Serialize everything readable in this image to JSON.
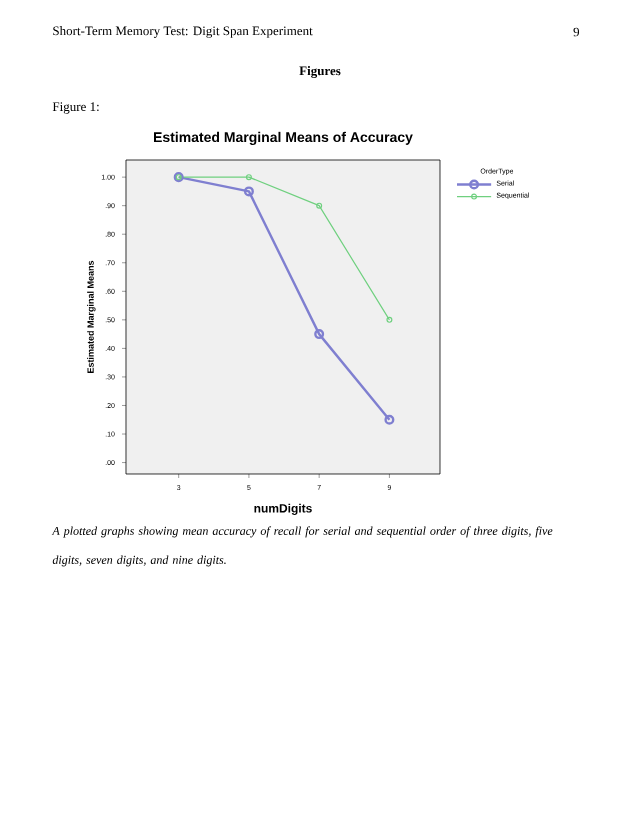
{
  "chart_data": {
    "type": "line",
    "title": "Estimated Marginal Means of Accuracy",
    "xlabel": "numDigits",
    "ylabel": "Estimated Marginal Means",
    "legend_title": "OrderType",
    "categories": [
      "3",
      "5",
      "7",
      "9"
    ],
    "series": [
      {
        "name": "Serial",
        "color": "#7f7fd0",
        "values": [
          1.0,
          0.95,
          0.45,
          0.15
        ]
      },
      {
        "name": "Sequential",
        "color": "#6fd07f",
        "values": [
          1.0,
          1.0,
          0.9,
          0.5
        ]
      }
    ],
    "ylim": [
      -0.04,
      1.06
    ],
    "yticks": [
      {
        "value": 0,
        "label": ".00"
      },
      {
        "value": 0.1,
        "label": ".10"
      },
      {
        "value": 0.2,
        "label": ".20"
      },
      {
        "value": 0.3,
        "label": ".30"
      },
      {
        "value": 0.4,
        "label": ".40"
      },
      {
        "value": 0.5,
        "label": ".50"
      },
      {
        "value": 0.6,
        "label": ".60"
      },
      {
        "value": 0.7,
        "label": ".70"
      },
      {
        "value": 0.8,
        "label": ".80"
      },
      {
        "value": 0.9,
        "label": ".90"
      },
      {
        "value": 1,
        "label": "1.00"
      }
    ],
    "grid": false,
    "legend": "top right",
    "marker": "circle",
    "line_style": "solid",
    "annotations": [
      "Short-Term Memory Test: Digit Span Experiment",
      "9",
      "Figures",
      "Figure 1:",
      "A plotted graphs showing mean accuracy of recall for serial and sequential order of three digits, five digits, seven digits, and nine digits."
    ]
  }
}
